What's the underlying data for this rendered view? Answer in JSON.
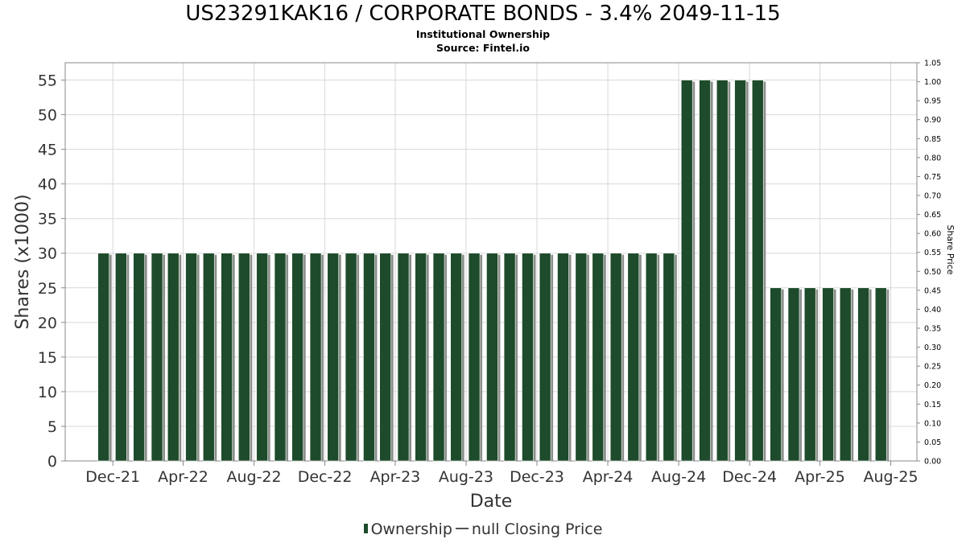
{
  "title": "US23291KAK16 / CORPORATE BONDS - 3.4% 2049-11-15",
  "subtitle1": "Institutional Ownership",
  "subtitle2": "Source: Fintel.io",
  "legend": {
    "ownership": "Ownership",
    "closing_price": "null Closing Price"
  },
  "colors": {
    "bar": "#1e4b2b",
    "bar_shadow": "#8a8f8a",
    "grid": "#d8d8d8"
  },
  "chart_data": {
    "type": "bar",
    "xlabel": "Date",
    "ylabel": "Shares (x1000)",
    "y2label": "Share Price",
    "ylim": [
      0,
      57.5
    ],
    "y_ticks": [
      0,
      5,
      10,
      15,
      20,
      25,
      30,
      35,
      40,
      45,
      50,
      55
    ],
    "y2lim": [
      0,
      1.05
    ],
    "y2_ticks": [
      "0.00",
      "0.05",
      "0.10",
      "0.15",
      "0.20",
      "0.25",
      "0.30",
      "0.35",
      "0.40",
      "0.45",
      "0.50",
      "0.55",
      "0.60",
      "0.65",
      "0.70",
      "0.75",
      "0.80",
      "0.85",
      "0.90",
      "0.95",
      "1.00",
      "1.05"
    ],
    "xlim": [
      "2021-09-10",
      "2025-09-15"
    ],
    "x_ticks": [
      {
        "label": "Dec-21",
        "date": "2021-12-01"
      },
      {
        "label": "Apr-22",
        "date": "2022-04-01"
      },
      {
        "label": "Aug-22",
        "date": "2022-08-01"
      },
      {
        "label": "Dec-22",
        "date": "2022-12-01"
      },
      {
        "label": "Apr-23",
        "date": "2023-04-01"
      },
      {
        "label": "Aug-23",
        "date": "2023-08-01"
      },
      {
        "label": "Dec-23",
        "date": "2023-12-01"
      },
      {
        "label": "Apr-24",
        "date": "2024-04-01"
      },
      {
        "label": "Aug-24",
        "date": "2024-08-01"
      },
      {
        "label": "Dec-24",
        "date": "2024-12-01"
      },
      {
        "label": "Apr-25",
        "date": "2025-04-01"
      },
      {
        "label": "Aug-25",
        "date": "2025-08-01"
      }
    ],
    "series": [
      {
        "name": "Ownership",
        "x": [
          "2021-11-15",
          "2021-12-15",
          "2022-01-15",
          "2022-02-15",
          "2022-03-15",
          "2022-04-15",
          "2022-05-15",
          "2022-06-15",
          "2022-07-15",
          "2022-08-15",
          "2022-09-15",
          "2022-10-15",
          "2022-11-15",
          "2022-12-15",
          "2023-01-15",
          "2023-02-15",
          "2023-03-15",
          "2023-04-15",
          "2023-05-15",
          "2023-06-15",
          "2023-07-15",
          "2023-08-15",
          "2023-09-15",
          "2023-10-15",
          "2023-11-15",
          "2023-12-15",
          "2024-01-15",
          "2024-02-15",
          "2024-03-15",
          "2024-04-15",
          "2024-05-15",
          "2024-06-15",
          "2024-07-15",
          "2024-08-15",
          "2024-09-15",
          "2024-10-15",
          "2024-11-15",
          "2024-12-15",
          "2025-01-15",
          "2025-02-15",
          "2025-03-15",
          "2025-04-15",
          "2025-05-15",
          "2025-06-15",
          "2025-07-15"
        ],
        "values": [
          30,
          30,
          30,
          30,
          30,
          30,
          30,
          30,
          30,
          30,
          30,
          30,
          30,
          30,
          30,
          30,
          30,
          30,
          30,
          30,
          30,
          30,
          30,
          30,
          30,
          30,
          30,
          30,
          30,
          30,
          30,
          30,
          30,
          55,
          55,
          55,
          55,
          55,
          25,
          25,
          25,
          25,
          25,
          25,
          25
        ]
      }
    ]
  }
}
